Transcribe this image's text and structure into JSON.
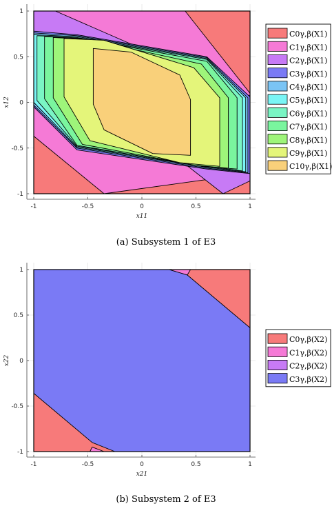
{
  "chart_data": [
    {
      "type": "area",
      "title": "",
      "xlabel": "x11",
      "ylabel": "x12",
      "xlim": [
        -1,
        1
      ],
      "ylim": [
        -1,
        1
      ],
      "xticks": [
        "-1",
        "-0.5",
        "0",
        "0.5",
        "1"
      ],
      "yticks": [
        "-1",
        "-0.5",
        "0",
        "0.5",
        "1"
      ],
      "grid": true,
      "legend_position": "right",
      "caption": "(a) Subsystem 1 of E3",
      "series": [
        {
          "name": "C0γ,β(X1)",
          "color": "#f77a7a",
          "polygons": [
            [
              [
                -1,
                1
              ],
              [
                -1,
                -1
              ],
              [
                1,
                -1
              ],
              [
                1,
                1
              ]
            ]
          ]
        },
        {
          "name": "C1γ,β(X1)",
          "color": "#f57ad6",
          "polygons": [
            [
              [
                -1,
                1
              ],
              [
                0.4,
                1
              ],
              [
                1,
                0.1
              ],
              [
                1,
                -0.78
              ],
              [
                -0.35,
                -1
              ],
              [
                -1,
                -0.37
              ]
            ]
          ]
        },
        {
          "name": "C2γ,β(X1)",
          "color": "#c77af5",
          "polygons": [
            [
              [
                -1,
                1
              ],
              [
                -0.8,
                1
              ],
              [
                1,
                0.07
              ],
              [
                1,
                -0.86
              ],
              [
                0.75,
                -1
              ],
              [
                -1,
                0.62
              ]
            ]
          ]
        },
        {
          "name": "C3γ,β(X1)",
          "color": "#7a7af5",
          "polygons": [
            [
              [
                -1,
                0.78
              ],
              [
                -0.6,
                0.74
              ],
              [
                0.6,
                0.5
              ],
              [
                1,
                0.06
              ],
              [
                1,
                -0.78
              ],
              [
                0.6,
                -0.73
              ],
              [
                -0.6,
                -0.52
              ],
              [
                -1,
                -0.05
              ]
            ]
          ]
        },
        {
          "name": "C4γ,β(X1)",
          "color": "#7ac4f5",
          "polygons": [
            [
              [
                -1,
                0.76
              ],
              [
                -0.6,
                0.73
              ],
              [
                0.6,
                0.49
              ],
              [
                0.98,
                0.05
              ],
              [
                0.98,
                -0.77
              ],
              [
                0.6,
                -0.72
              ],
              [
                -0.6,
                -0.5
              ],
              [
                -1,
                -0.03
              ]
            ]
          ]
        },
        {
          "name": "C5γ,β(X1)",
          "color": "#7af5f5",
          "polygons": [
            [
              [
                -1,
                0.74
              ],
              [
                -0.6,
                0.72
              ],
              [
                0.6,
                0.48
              ],
              [
                0.96,
                0.05
              ],
              [
                0.96,
                -0.76
              ],
              [
                0.6,
                -0.71
              ],
              [
                -0.6,
                -0.49
              ],
              [
                -1,
                0.0
              ]
            ]
          ]
        },
        {
          "name": "C6γ,β(X1)",
          "color": "#7af5c4",
          "polygons": [
            [
              [
                -0.97,
                0.73
              ],
              [
                -0.6,
                0.71
              ],
              [
                0.6,
                0.47
              ],
              [
                0.93,
                0.05
              ],
              [
                0.93,
                -0.75
              ],
              [
                0.6,
                -0.7
              ],
              [
                -0.6,
                -0.48
              ],
              [
                -0.97,
                0.02
              ]
            ]
          ]
        },
        {
          "name": "C7γ,β(X1)",
          "color": "#7af59e",
          "polygons": [
            [
              [
                -0.9,
                0.72
              ],
              [
                -0.55,
                0.7
              ],
              [
                0.6,
                0.45
              ],
              [
                0.88,
                0.05
              ],
              [
                0.88,
                -0.73
              ],
              [
                0.55,
                -0.7
              ],
              [
                -0.6,
                -0.47
              ],
              [
                -0.9,
                0.04
              ]
            ]
          ]
        },
        {
          "name": "C8γ,β(X1)",
          "color": "#9ef57a",
          "polygons": [
            [
              [
                -0.82,
                0.71
              ],
              [
                -0.5,
                0.69
              ],
              [
                0.55,
                0.42
              ],
              [
                0.8,
                0.05
              ],
              [
                0.8,
                -0.72
              ],
              [
                0.5,
                -0.69
              ],
              [
                -0.55,
                -0.46
              ],
              [
                -0.82,
                0.05
              ]
            ]
          ]
        },
        {
          "name": "C9γ,β(X1)",
          "color": "#e4f57a",
          "polygons": [
            [
              [
                -0.72,
                0.7
              ],
              [
                -0.35,
                0.68
              ],
              [
                0.48,
                0.38
              ],
              [
                0.72,
                0.05
              ],
              [
                0.72,
                -0.7
              ],
              [
                0.35,
                -0.66
              ],
              [
                -0.48,
                -0.42
              ],
              [
                -0.72,
                0.06
              ]
            ]
          ]
        },
        {
          "name": "C10γ,β(X1)",
          "color": "#f9d07a",
          "polygons": [
            [
              [
                -0.45,
                0.59
              ],
              [
                -0.1,
                0.55
              ],
              [
                0.35,
                0.3
              ],
              [
                0.45,
                0.03
              ],
              [
                0.45,
                -0.58
              ],
              [
                0.1,
                -0.56
              ],
              [
                -0.35,
                -0.3
              ],
              [
                -0.45,
                -0.02
              ]
            ]
          ]
        }
      ]
    },
    {
      "type": "area",
      "title": "",
      "xlabel": "x21",
      "ylabel": "x22",
      "xlim": [
        -1,
        1
      ],
      "ylim": [
        -1,
        1
      ],
      "xticks": [
        "-1",
        "-0.5",
        "0",
        "0.5",
        "1"
      ],
      "yticks": [
        "-1",
        "-0.5",
        "0",
        "0.5",
        "1"
      ],
      "grid": true,
      "legend_position": "right",
      "caption": "(b) Subsystem 2 of E3",
      "series": [
        {
          "name": "C0γ,β(X2)",
          "color": "#f77a7a",
          "polygons": [
            [
              [
                -1,
                1
              ],
              [
                -1,
                -1
              ],
              [
                1,
                -1
              ],
              [
                1,
                1
              ]
            ]
          ]
        },
        {
          "name": "C1γ,β(X2)",
          "color": "#f57ad6",
          "polygons": [
            [
              [
                0.25,
                1
              ],
              [
                0.45,
                1
              ],
              [
                0.42,
                0.94
              ]
            ],
            [
              [
                -0.48,
                -1
              ],
              [
                -0.35,
                -1
              ],
              [
                -0.46,
                -0.95
              ]
            ]
          ]
        },
        {
          "name": "C2γ,β(X2)",
          "color": "#c77af5",
          "polygons": []
        },
        {
          "name": "C3γ,β(X2)",
          "color": "#7a7af5",
          "polygons": [
            [
              [
                -1,
                1
              ],
              [
                0.25,
                1
              ],
              [
                0.42,
                0.94
              ],
              [
                1,
                0.36
              ],
              [
                1,
                -1
              ],
              [
                -0.25,
                -1
              ],
              [
                -0.46,
                -0.9
              ],
              [
                -1,
                -0.36
              ]
            ]
          ]
        }
      ]
    }
  ]
}
